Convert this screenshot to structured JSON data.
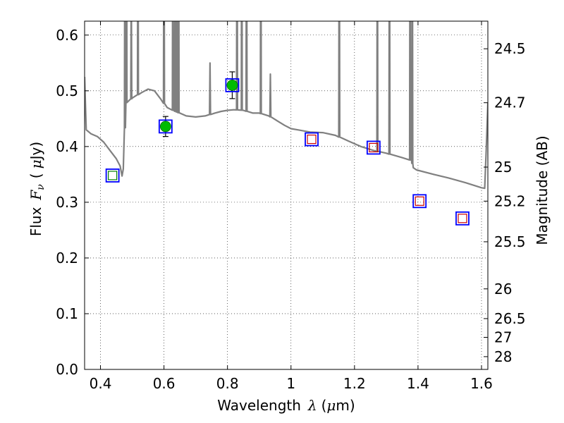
{
  "chart_data": {
    "type": "scatter",
    "title": "",
    "xlabel": {
      "text": "Wavelength",
      "symbol": "λ",
      "unit_open": "(",
      "unit_mu": "μ",
      "unit_rest": "m)"
    },
    "ylabel": {
      "text": "Flux",
      "symbol": "F",
      "sub": "ν",
      "unit_open": "(",
      "unit_mu": "μ",
      "unit_rest": "Jy)"
    },
    "ylabel_right": "Magnitude (AB)",
    "xlim": [
      0.35,
      1.62
    ],
    "ylim": [
      0.0,
      0.625
    ],
    "grid": true,
    "x_ticks": [
      {
        "v": 0.4,
        "label": "0.4"
      },
      {
        "v": 0.6,
        "label": "0.6"
      },
      {
        "v": 0.8,
        "label": "0.8"
      },
      {
        "v": 1.0,
        "label": "1"
      },
      {
        "v": 1.2,
        "label": "1.2"
      },
      {
        "v": 1.4,
        "label": "1.4"
      },
      {
        "v": 1.6,
        "label": "1.6"
      }
    ],
    "y_ticks": [
      {
        "v": 0.0,
        "label": "0.0"
      },
      {
        "v": 0.1,
        "label": "0.1"
      },
      {
        "v": 0.2,
        "label": "0.2"
      },
      {
        "v": 0.3,
        "label": "0.3"
      },
      {
        "v": 0.4,
        "label": "0.4"
      },
      {
        "v": 0.5,
        "label": "0.5"
      },
      {
        "v": 0.6,
        "label": "0.6"
      }
    ],
    "mag_ticks": [
      {
        "mag": 24.5,
        "label": "24.5"
      },
      {
        "mag": 24.7,
        "label": "24.7"
      },
      {
        "mag": 25,
        "label": "25"
      },
      {
        "mag": 25.2,
        "label": "25.2"
      },
      {
        "mag": 25.5,
        "label": "25.5"
      },
      {
        "mag": 26,
        "label": "26"
      },
      {
        "mag": 26.5,
        "label": "26.5"
      },
      {
        "mag": 27,
        "label": "27"
      },
      {
        "mag": 28,
        "label": "28"
      }
    ],
    "mag_zero_point": 23.9,
    "sed_model": {
      "name": "model spectrum",
      "color": "#808080",
      "continuum": [
        [
          0.35,
          0.525
        ],
        [
          0.355,
          0.43
        ],
        [
          0.37,
          0.423
        ],
        [
          0.39,
          0.418
        ],
        [
          0.41,
          0.408
        ],
        [
          0.43,
          0.393
        ],
        [
          0.45,
          0.378
        ],
        [
          0.462,
          0.365
        ],
        [
          0.468,
          0.347
        ],
        [
          0.472,
          0.36
        ],
        [
          0.48,
          0.478
        ],
        [
          0.5,
          0.487
        ],
        [
          0.53,
          0.497
        ],
        [
          0.55,
          0.503
        ],
        [
          0.57,
          0.5
        ],
        [
          0.59,
          0.485
        ],
        [
          0.61,
          0.47
        ],
        [
          0.64,
          0.462
        ],
        [
          0.67,
          0.455
        ],
        [
          0.7,
          0.453
        ],
        [
          0.73,
          0.455
        ],
        [
          0.76,
          0.46
        ],
        [
          0.78,
          0.463
        ],
        [
          0.8,
          0.465
        ],
        [
          0.82,
          0.466
        ],
        [
          0.85,
          0.465
        ],
        [
          0.88,
          0.46
        ],
        [
          0.9,
          0.46
        ],
        [
          0.93,
          0.455
        ],
        [
          0.96,
          0.445
        ],
        [
          0.98,
          0.438
        ],
        [
          1.0,
          0.432
        ],
        [
          1.02,
          0.43
        ],
        [
          1.06,
          0.426
        ],
        [
          1.1,
          0.425
        ],
        [
          1.14,
          0.42
        ],
        [
          1.18,
          0.41
        ],
        [
          1.22,
          0.4
        ],
        [
          1.26,
          0.393
        ],
        [
          1.3,
          0.388
        ],
        [
          1.35,
          0.38
        ],
        [
          1.38,
          0.375
        ],
        [
          1.385,
          0.362
        ],
        [
          1.395,
          0.358
        ],
        [
          1.45,
          0.35
        ],
        [
          1.5,
          0.343
        ],
        [
          1.55,
          0.335
        ],
        [
          1.6,
          0.326
        ],
        [
          1.61,
          0.325
        ],
        [
          1.615,
          0.395
        ],
        [
          1.62,
          0.478
        ]
      ],
      "emission_lines": [
        [
          0.477,
          0.95
        ],
        [
          0.482,
          0.95
        ],
        [
          0.497,
          0.7
        ],
        [
          0.518,
          0.95
        ],
        [
          0.6,
          0.95
        ],
        [
          0.628,
          0.95
        ],
        [
          0.635,
          0.95
        ],
        [
          0.64,
          0.95
        ],
        [
          0.646,
          0.95
        ],
        [
          0.745,
          0.55
        ],
        [
          0.83,
          0.95
        ],
        [
          0.845,
          0.95
        ],
        [
          0.86,
          0.95
        ],
        [
          0.905,
          0.95
        ],
        [
          0.935,
          0.53
        ],
        [
          1.152,
          0.95
        ],
        [
          1.272,
          0.95
        ],
        [
          1.31,
          0.95
        ],
        [
          1.375,
          0.95
        ],
        [
          1.382,
          0.95
        ]
      ]
    },
    "photometry": [
      {
        "x": 0.438,
        "y": 0.348,
        "kind": "open",
        "inner": "#008000"
      },
      {
        "x": 0.605,
        "y": 0.436,
        "kind": "filled",
        "err": 0.018
      },
      {
        "x": 0.815,
        "y": 0.51,
        "kind": "filled",
        "err": 0.024
      },
      {
        "x": 1.065,
        "y": 0.413,
        "kind": "open",
        "inner": "#cc0000"
      },
      {
        "x": 1.26,
        "y": 0.398,
        "kind": "open",
        "inner": "#cc0000"
      },
      {
        "x": 1.405,
        "y": 0.302,
        "kind": "open",
        "inner": "#cc0000"
      },
      {
        "x": 1.54,
        "y": 0.271,
        "kind": "open",
        "inner": "#cc0000"
      }
    ],
    "colors": {
      "outer_square": "#0000ff",
      "filled_point": "#00bb00",
      "errorbar": "#000000"
    }
  }
}
